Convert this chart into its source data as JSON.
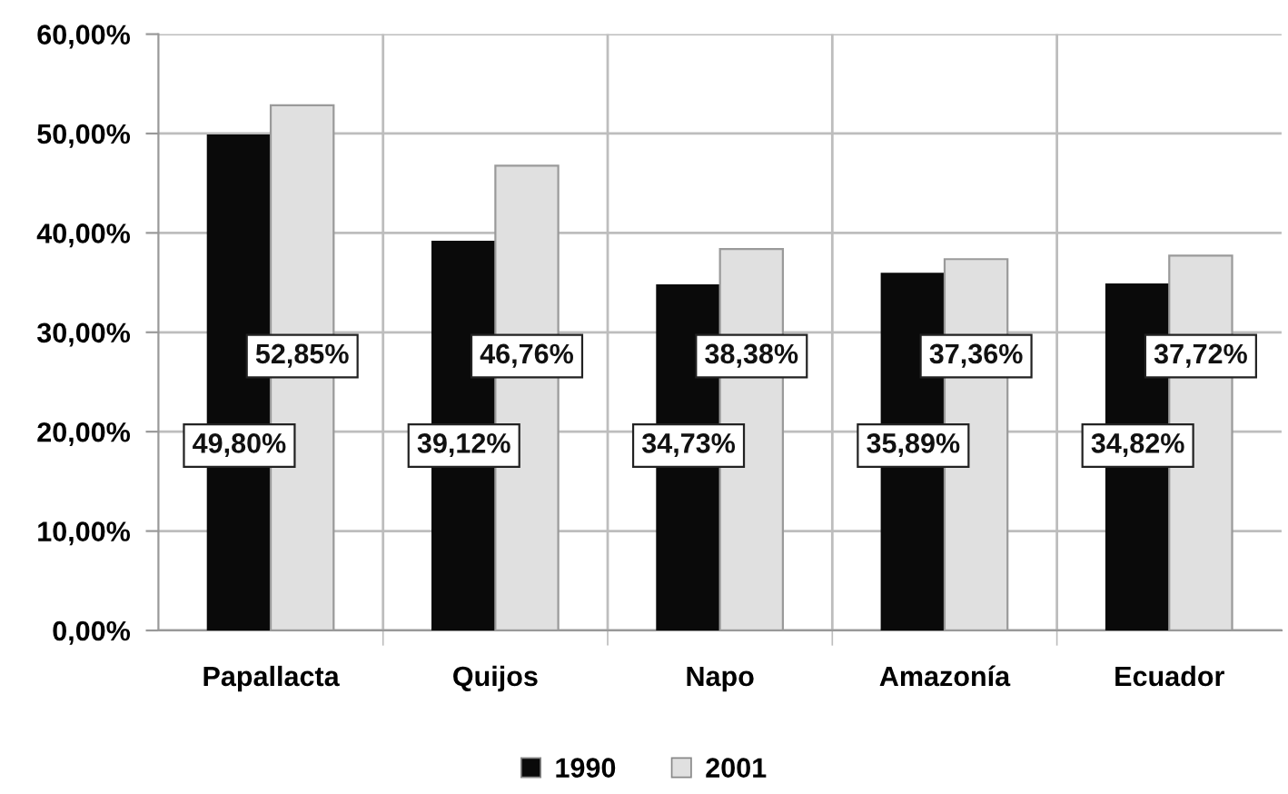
{
  "chart_data": {
    "type": "bar",
    "categories": [
      "Papallacta",
      "Quijos",
      "Napo",
      "Amazonía",
      "Ecuador"
    ],
    "series": [
      {
        "name": "1990",
        "color": "#0a0a0a",
        "values": [
          49.8,
          39.12,
          34.73,
          35.89,
          34.82
        ],
        "value_labels": [
          "49,80%",
          "39,12%",
          "34,73%",
          "35,89%",
          "34,82%"
        ]
      },
      {
        "name": "2001",
        "color": "#e0e0e0",
        "values": [
          52.85,
          46.76,
          38.38,
          37.36,
          37.72
        ],
        "value_labels": [
          "52,85%",
          "46,76%",
          "38,38%",
          "37,36%",
          "37,72%"
        ]
      }
    ],
    "ylim": [
      0,
      60
    ],
    "yticks": [
      {
        "value": 0,
        "label": "0,00%"
      },
      {
        "value": 10,
        "label": "10,00%"
      },
      {
        "value": 20,
        "label": "20,00%"
      },
      {
        "value": 30,
        "label": "30,00%"
      },
      {
        "value": 40,
        "label": "40,00%"
      },
      {
        "value": 50,
        "label": "50,00%"
      },
      {
        "value": 60,
        "label": "60,00%"
      }
    ],
    "grid": true,
    "legend": "bottom"
  }
}
